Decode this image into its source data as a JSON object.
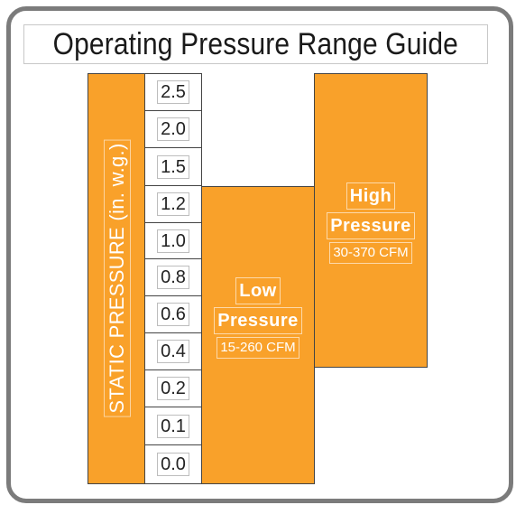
{
  "title": "Operating Pressure Range Guide",
  "axis": {
    "label": "STATIC PRESSURE (in. w.g.)",
    "ticks": [
      "2.5",
      "2.0",
      "1.5",
      "1.2",
      "1.0",
      "0.8",
      "0.6",
      "0.4",
      "0.2",
      "0.1",
      "0.0"
    ]
  },
  "ranges": [
    {
      "name_line1": "Low",
      "name_line2": "Pressure",
      "flow": "15-260 CFM",
      "pressure_min": "0.0",
      "pressure_max": "1.2"
    },
    {
      "name_line1": "High",
      "name_line2": "Pressure",
      "flow": "30-370 CFM",
      "pressure_min": "0.4",
      "pressure_max": "2.5"
    }
  ],
  "colors": {
    "fill": "#f9a12a",
    "frame": "#7b7b7b",
    "line": "#444444"
  }
}
